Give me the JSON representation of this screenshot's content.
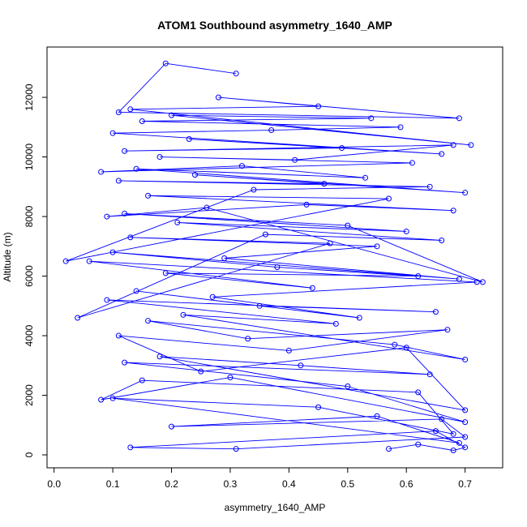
{
  "chart_data": {
    "type": "line",
    "title": "ATOM1 Southbound asymmetry_1640_AMP",
    "xlabel": "asymmetry_1640_AMP",
    "ylabel": "Altitude (m)",
    "color": "#0000ff",
    "markers": true,
    "xlim": [
      -0.012,
      0.764
    ],
    "ylim": [
      -435,
      13690
    ],
    "xticks": [
      {
        "value": 0,
        "label": "0.0"
      },
      0.1,
      0.2,
      0.3,
      0.4,
      0.5,
      0.6,
      0.7
    ],
    "yticks": [
      0,
      2000,
      4000,
      6000,
      8000,
      10000,
      12000
    ],
    "x": [
      0.57,
      0.62,
      0.68,
      0.7,
      0.65,
      0.13,
      0.31,
      0.7,
      0.66,
      0.2,
      0.55,
      0.69,
      0.1,
      0.45,
      0.68,
      0.62,
      0.15,
      0.08,
      0.3,
      0.7,
      0.5,
      0.12,
      0.64,
      0.42,
      0.18,
      0.7,
      0.6,
      0.25,
      0.11,
      0.4,
      0.67,
      0.33,
      0.16,
      0.58,
      0.7,
      0.22,
      0.48,
      0.09,
      0.65,
      0.35,
      0.14,
      0.52,
      0.27,
      0.72,
      0.06,
      0.44,
      0.19,
      0.62,
      0.38,
      0.1,
      0.69,
      0.29,
      0.55,
      0.13,
      0.47,
      0.04,
      0.36,
      0.66,
      0.21,
      0.6,
      0.12,
      0.5,
      0.73,
      0.26,
      0.09,
      0.43,
      0.68,
      0.16,
      0.57,
      0.02,
      0.34,
      0.64,
      0.11,
      0.46,
      0.24,
      0.7,
      0.14,
      0.53,
      0.32,
      0.08,
      0.61,
      0.18,
      0.41,
      0.68,
      0.12,
      0.49,
      0.23,
      0.66,
      0.1,
      0.37,
      0.59,
      0.15,
      0.54,
      0.2,
      0.71,
      0.13,
      0.45,
      0.28,
      0.69,
      0.11,
      0.19,
      0.31
    ],
    "values": [
      200,
      350,
      150,
      250,
      800,
      250,
      200,
      600,
      1200,
      950,
      1300,
      400,
      1900,
      1600,
      700,
      2100,
      2500,
      1850,
      2600,
      1100,
      2300,
      3100,
      2700,
      3000,
      3300,
      1500,
      3600,
      2800,
      4000,
      3500,
      4200,
      3900,
      4500,
      3700,
      3200,
      4700,
      4400,
      5200,
      4800,
      5000,
      5500,
      4600,
      5300,
      5800,
      6500,
      5600,
      6100,
      6000,
      6300,
      6800,
      5900,
      6600,
      7000,
      7300,
      7100,
      4600,
      7400,
      7200,
      7800,
      7500,
      8100,
      7700,
      5800,
      8300,
      8000,
      8400,
      8200,
      8700,
      8600,
      6500,
      8900,
      9000,
      9200,
      9100,
      9400,
      8800,
      9600,
      9300,
      9700,
      9500,
      9800,
      10000,
      9900,
      10400,
      10200,
      10300,
      10600,
      10100,
      10800,
      10900,
      11000,
      11200,
      11300,
      11400,
      10400,
      11600,
      11700,
      12000,
      11300,
      11500,
      13140,
      12800
    ]
  }
}
